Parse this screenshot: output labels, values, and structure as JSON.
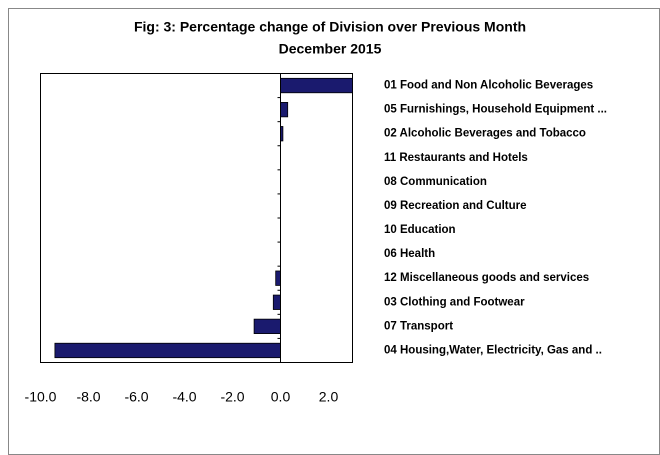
{
  "chart_data": {
    "type": "barh",
    "title": "Fig: 3: Percentage change of Division over Previous Month",
    "subtitle": "December 2015",
    "categories": [
      "01 Food and Non Alcoholic  Beverages",
      "05 Furnishings, Household Equipment ...",
      "02 Alcoholic  Beverages and Tobacco",
      "11 Restaurants and Hotels",
      "08 Communication",
      "09 Recreation and Culture",
      "10 Education",
      "06 Health",
      "12 Miscellaneous  goods and services",
      "03 Clothing and Footwear",
      "07 Transport",
      "04 Housing,Water, Electricity, Gas and .."
    ],
    "values": [
      3.0,
      0.3,
      0.1,
      0.0,
      0.0,
      0.0,
      0.0,
      0.0,
      -0.2,
      -0.3,
      -1.1,
      -9.4
    ],
    "color": "#1a1a6e",
    "xlim": [
      -10,
      3
    ],
    "xticks": [
      {
        "value": -10,
        "label": "-10.0"
      },
      {
        "value": -8,
        "label": "-8.0"
      },
      {
        "value": -6,
        "label": "-6.0"
      },
      {
        "value": -4,
        "label": "-4.0"
      },
      {
        "value": -2,
        "label": "-2.0"
      },
      {
        "value": 0,
        "label": "0.0"
      },
      {
        "value": 2,
        "label": "2.0"
      }
    ],
    "grid": false
  }
}
